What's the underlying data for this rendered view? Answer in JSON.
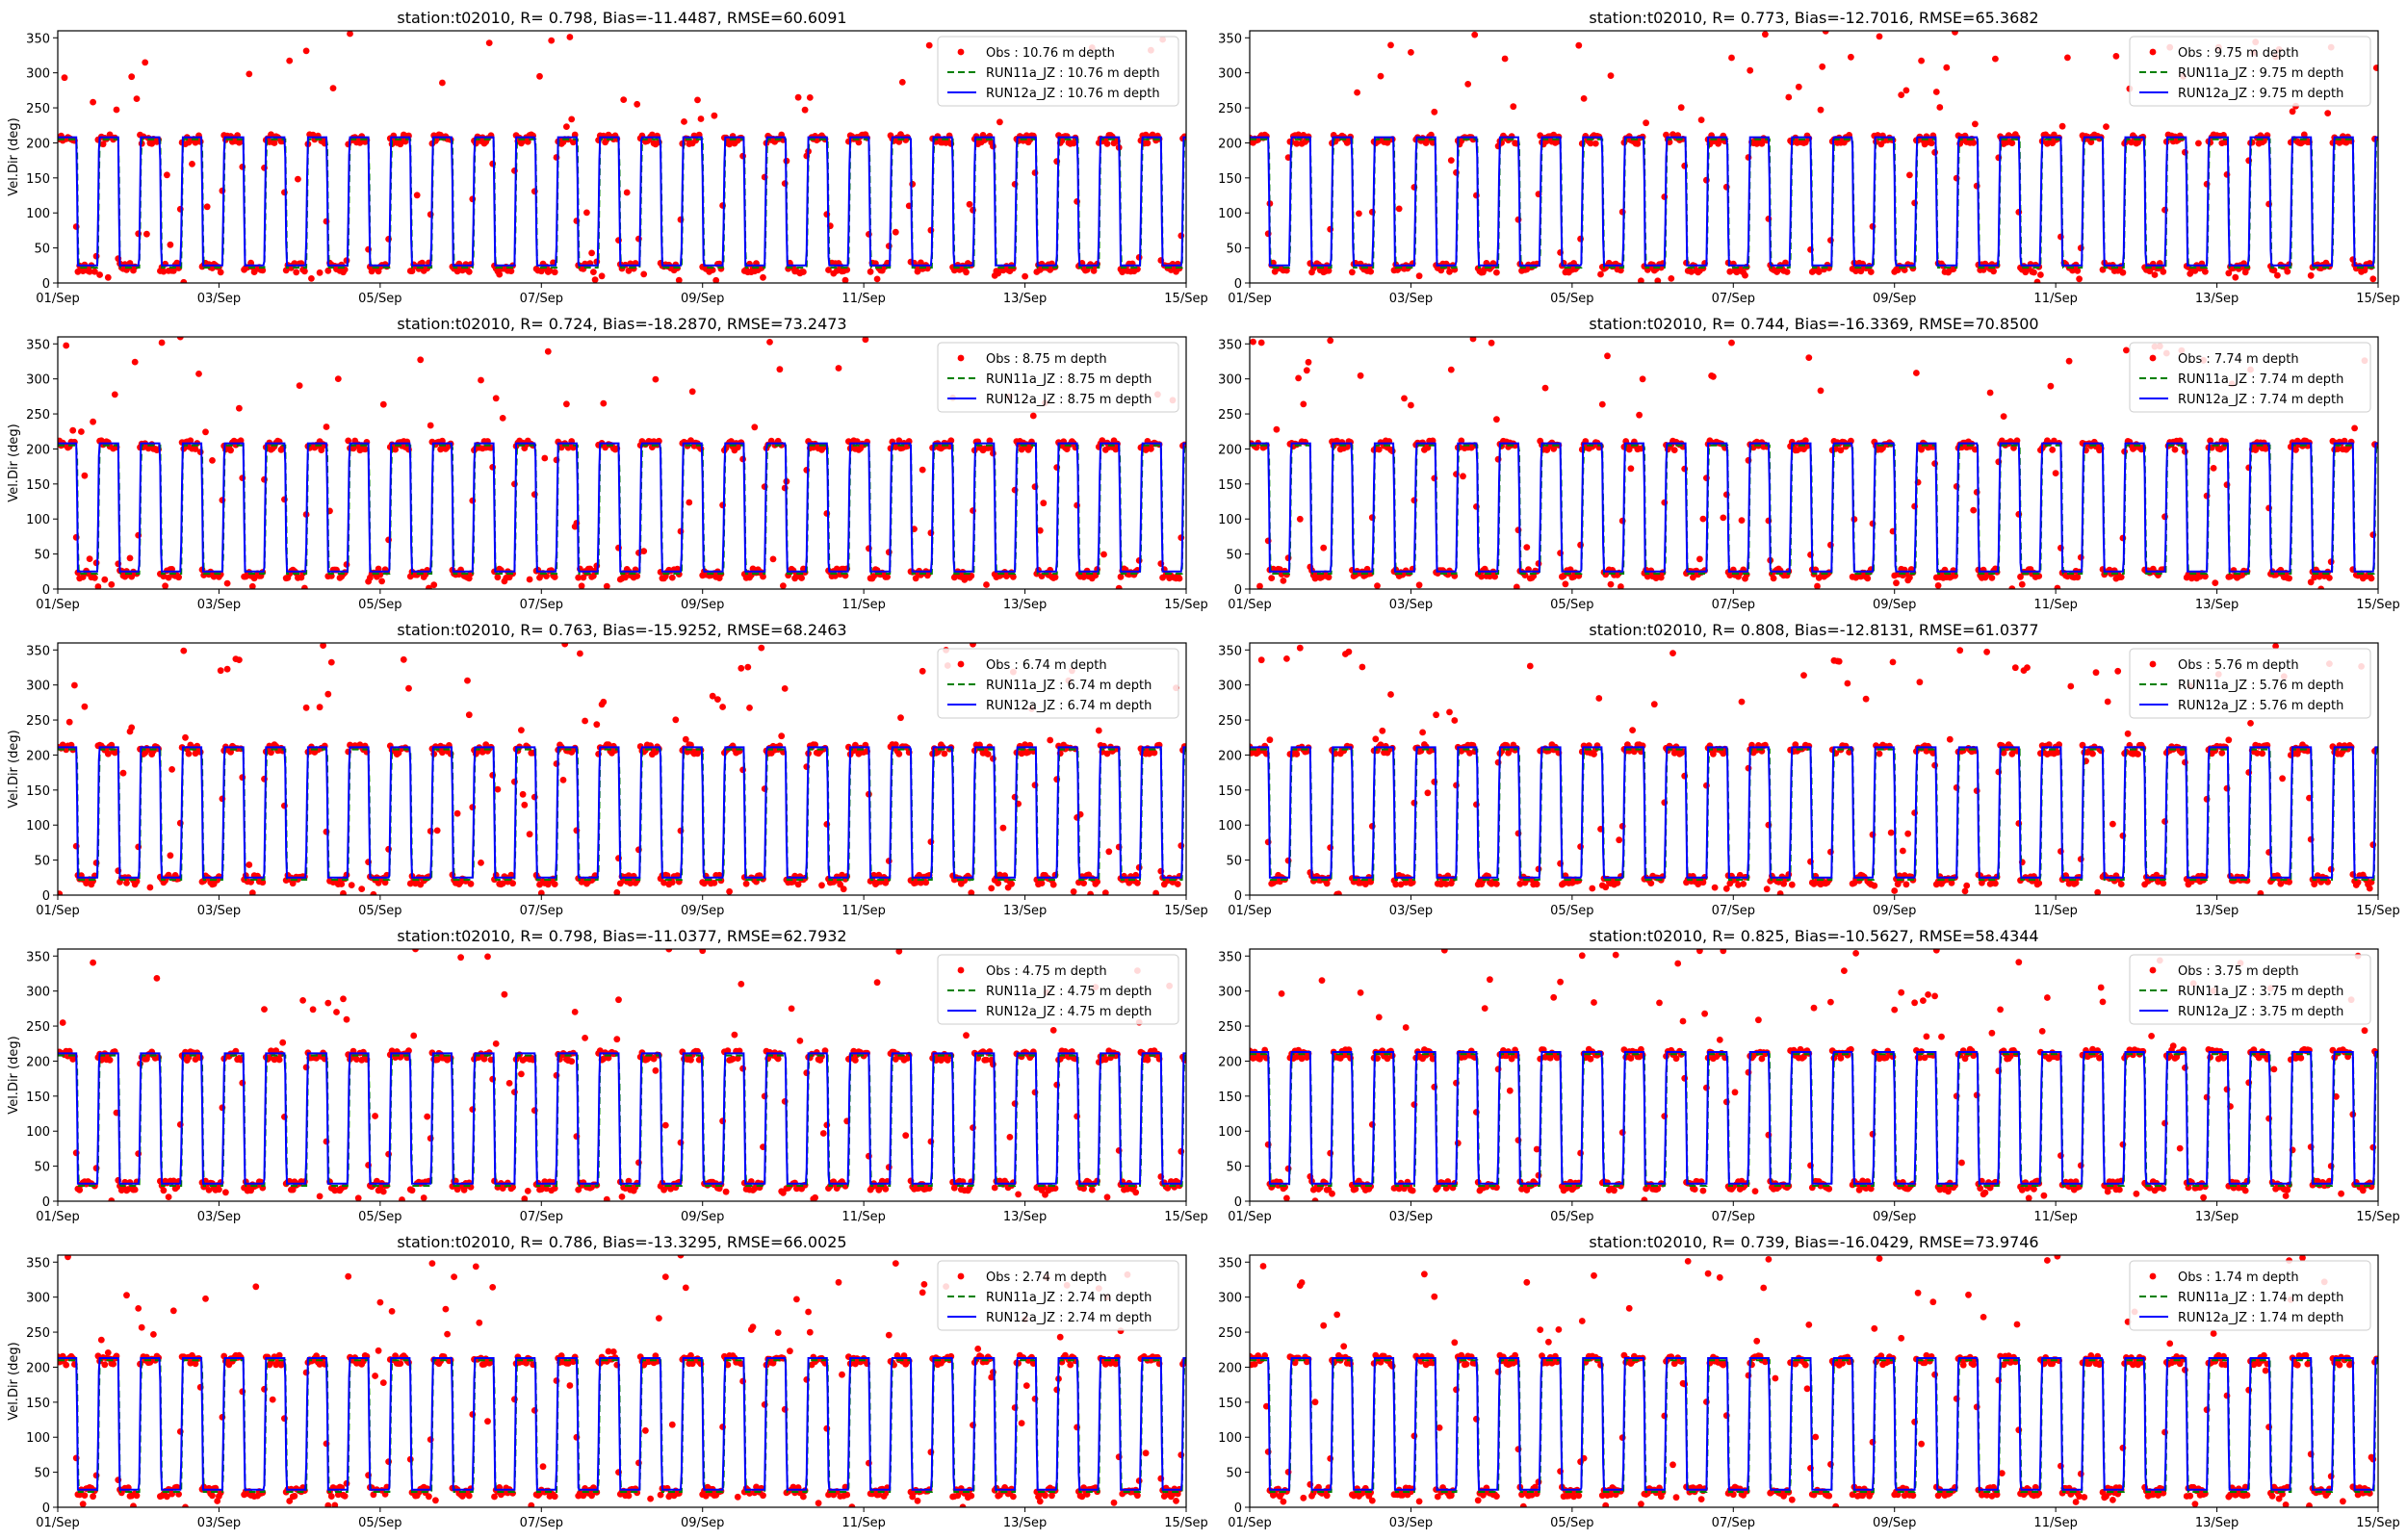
{
  "figure": {
    "colors": {
      "obs": "#ff0000",
      "run11": "#008000",
      "run12": "#0000ff"
    },
    "y_ticks": [
      "0",
      "50",
      "100",
      "150",
      "200",
      "250",
      "300",
      "350"
    ],
    "x_ticks": [
      "01/Sep",
      "03/Sep",
      "05/Sep",
      "07/Sep",
      "09/Sep",
      "11/Sep",
      "13/Sep",
      "15/Sep"
    ],
    "ylabel": "Vel.Dir (deg)"
  },
  "chart_data": [
    {
      "type": "scatter+line",
      "title": "station:t02010, R= 0.798, Bias=-11.4487, RMSE=60.6091",
      "ylabel": "Vel.Dir (deg)",
      "ylim": [
        0,
        360
      ],
      "x_range_days": [
        0,
        14
      ],
      "legend": [
        "Obs : 10.76 m depth",
        "RUN11a_JZ : 10.76 m depth",
        "RUN12a_JZ : 10.76 m depth"
      ],
      "legend_position": "top-right",
      "series": [
        {
          "name": "Obs : 10.76 m depth",
          "style": "points",
          "period_hours": 12.42,
          "high": 205,
          "low": 18
        },
        {
          "name": "RUN11a_JZ : 10.76 m depth",
          "style": "dashed",
          "high": 205,
          "low": 22
        },
        {
          "name": "RUN12a_JZ : 10.76 m depth",
          "style": "solid",
          "high": 205,
          "low": 22
        }
      ]
    },
    {
      "type": "scatter+line",
      "title": "station:t02010, R= 0.773, Bias=-12.7016, RMSE=65.3682",
      "ylabel": "",
      "ylim": [
        0,
        360
      ],
      "x_range_days": [
        0,
        14
      ],
      "legend": [
        "Obs : 9.75 m depth",
        "RUN11a_JZ : 9.75 m depth",
        "RUN12a_JZ : 9.75 m depth"
      ],
      "legend_position": "top-right",
      "series": [
        {
          "name": "Obs : 9.75 m depth",
          "style": "points",
          "period_hours": 12.42,
          "high": 205,
          "low": 18
        },
        {
          "name": "RUN11a_JZ : 9.75 m depth",
          "style": "dashed",
          "high": 205,
          "low": 22
        },
        {
          "name": "RUN12a_JZ : 9.75 m depth",
          "style": "solid",
          "high": 205,
          "low": 22
        }
      ]
    },
    {
      "type": "scatter+line",
      "title": "station:t02010, R= 0.724, Bias=-18.2870, RMSE=73.2473",
      "ylabel": "Vel.Dir (deg)",
      "ylim": [
        0,
        360
      ],
      "x_range_days": [
        0,
        14
      ],
      "legend": [
        "Obs : 8.75 m depth",
        "RUN11a_JZ : 8.75 m depth",
        "RUN12a_JZ : 8.75 m depth"
      ],
      "legend_position": "top-right",
      "series": [
        {
          "name": "Obs : 8.75 m depth",
          "style": "points",
          "period_hours": 12.42,
          "high": 205,
          "low": 18
        },
        {
          "name": "RUN11a_JZ : 8.75 m depth",
          "style": "dashed",
          "high": 205,
          "low": 22
        },
        {
          "name": "RUN12a_JZ : 8.75 m depth",
          "style": "solid",
          "high": 205,
          "low": 22
        }
      ]
    },
    {
      "type": "scatter+line",
      "title": "station:t02010, R= 0.744, Bias=-16.3369, RMSE=70.8500",
      "ylabel": "",
      "ylim": [
        0,
        360
      ],
      "x_range_days": [
        0,
        14
      ],
      "legend": [
        "Obs : 7.74 m depth",
        "RUN11a_JZ : 7.74 m depth",
        "RUN12a_JZ : 7.74 m depth"
      ],
      "legend_position": "top-right",
      "series": [
        {
          "name": "Obs : 7.74 m depth",
          "style": "points",
          "period_hours": 12.42,
          "high": 205,
          "low": 18
        },
        {
          "name": "RUN11a_JZ : 7.74 m depth",
          "style": "dashed",
          "high": 205,
          "low": 22
        },
        {
          "name": "RUN12a_JZ : 7.74 m depth",
          "style": "solid",
          "high": 205,
          "low": 22
        }
      ]
    },
    {
      "type": "scatter+line",
      "title": "station:t02010, R= 0.763, Bias=-15.9252, RMSE=68.2463",
      "ylabel": "Vel.Dir (deg)",
      "ylim": [
        0,
        360
      ],
      "x_range_days": [
        0,
        14
      ],
      "legend": [
        "Obs : 6.74 m depth",
        "RUN11a_JZ : 6.74 m depth",
        "RUN12a_JZ : 6.74 m depth"
      ],
      "legend_position": "top-right",
      "series": [
        {
          "name": "Obs : 6.74 m depth",
          "style": "points",
          "period_hours": 12.42,
          "high": 208,
          "low": 18
        },
        {
          "name": "RUN11a_JZ : 6.74 m depth",
          "style": "dashed",
          "high": 208,
          "low": 22
        },
        {
          "name": "RUN12a_JZ : 6.74 m depth",
          "style": "solid",
          "high": 208,
          "low": 22
        }
      ]
    },
    {
      "type": "scatter+line",
      "title": "station:t02010, R= 0.808, Bias=-12.8131, RMSE=61.0377",
      "ylabel": "",
      "ylim": [
        0,
        360
      ],
      "x_range_days": [
        0,
        14
      ],
      "legend": [
        "Obs : 5.76 m depth",
        "RUN11a_JZ : 5.76 m depth",
        "RUN12a_JZ : 5.76 m depth"
      ],
      "legend_position": "top-right",
      "series": [
        {
          "name": "Obs : 5.76 m depth",
          "style": "points",
          "period_hours": 12.42,
          "high": 208,
          "low": 18
        },
        {
          "name": "RUN11a_JZ : 5.76 m depth",
          "style": "dashed",
          "high": 208,
          "low": 22
        },
        {
          "name": "RUN12a_JZ : 5.76 m depth",
          "style": "solid",
          "high": 208,
          "low": 22
        }
      ]
    },
    {
      "type": "scatter+line",
      "title": "station:t02010, R= 0.798, Bias=-11.0377, RMSE=62.7932",
      "ylabel": "Vel.Dir (deg)",
      "ylim": [
        0,
        360
      ],
      "x_range_days": [
        0,
        14
      ],
      "legend": [
        "Obs : 4.75 m depth",
        "RUN11a_JZ : 4.75 m depth",
        "RUN12a_JZ : 4.75 m depth"
      ],
      "legend_position": "top-right",
      "series": [
        {
          "name": "Obs : 4.75 m depth",
          "style": "points",
          "period_hours": 12.42,
          "high": 208,
          "low": 18
        },
        {
          "name": "RUN11a_JZ : 4.75 m depth",
          "style": "dashed",
          "high": 208,
          "low": 22
        },
        {
          "name": "RUN12a_JZ : 4.75 m depth",
          "style": "solid",
          "high": 208,
          "low": 22
        }
      ]
    },
    {
      "type": "scatter+line",
      "title": "station:t02010, R= 0.825, Bias=-10.5627, RMSE=58.4344",
      "ylabel": "",
      "ylim": [
        0,
        360
      ],
      "x_range_days": [
        0,
        14
      ],
      "legend": [
        "Obs : 3.75 m depth",
        "RUN11a_JZ : 3.75 m depth",
        "RUN12a_JZ : 3.75 m depth"
      ],
      "legend_position": "top-right",
      "series": [
        {
          "name": "Obs : 3.75 m depth",
          "style": "points",
          "period_hours": 12.42,
          "high": 210,
          "low": 18
        },
        {
          "name": "RUN11a_JZ : 3.75 m depth",
          "style": "dashed",
          "high": 210,
          "low": 22
        },
        {
          "name": "RUN12a_JZ : 3.75 m depth",
          "style": "solid",
          "high": 210,
          "low": 22
        }
      ]
    },
    {
      "type": "scatter+line",
      "title": "station:t02010, R= 0.786, Bias=-13.3295, RMSE=66.0025",
      "ylabel": "Vel.Dir (deg)",
      "ylim": [
        0,
        360
      ],
      "x_range_days": [
        0,
        14
      ],
      "legend": [
        "Obs : 2.74 m depth",
        "RUN11a_JZ : 2.74 m depth",
        "RUN12a_JZ : 2.74 m depth"
      ],
      "legend_position": "top-right",
      "series": [
        {
          "name": "Obs : 2.74 m depth",
          "style": "points",
          "period_hours": 12.42,
          "high": 210,
          "low": 18
        },
        {
          "name": "RUN11a_JZ : 2.74 m depth",
          "style": "dashed",
          "high": 210,
          "low": 22
        },
        {
          "name": "RUN12a_JZ : 2.74 m depth",
          "style": "solid",
          "high": 210,
          "low": 22
        }
      ]
    },
    {
      "type": "scatter+line",
      "title": "station:t02010, R= 0.739, Bias=-16.0429, RMSE=73.9746",
      "ylabel": "",
      "ylim": [
        0,
        360
      ],
      "x_range_days": [
        0,
        14
      ],
      "legend": [
        "Obs : 1.74 m depth",
        "RUN11a_JZ : 1.74 m depth",
        "RUN12a_JZ : 1.74 m depth"
      ],
      "legend_position": "top-right",
      "series": [
        {
          "name": "Obs : 1.74 m depth",
          "style": "points",
          "period_hours": 12.42,
          "high": 210,
          "low": 18
        },
        {
          "name": "RUN11a_JZ : 1.74 m depth",
          "style": "dashed",
          "high": 210,
          "low": 22
        },
        {
          "name": "RUN12a_JZ : 1.74 m depth",
          "style": "solid",
          "high": 210,
          "low": 22
        }
      ]
    }
  ]
}
